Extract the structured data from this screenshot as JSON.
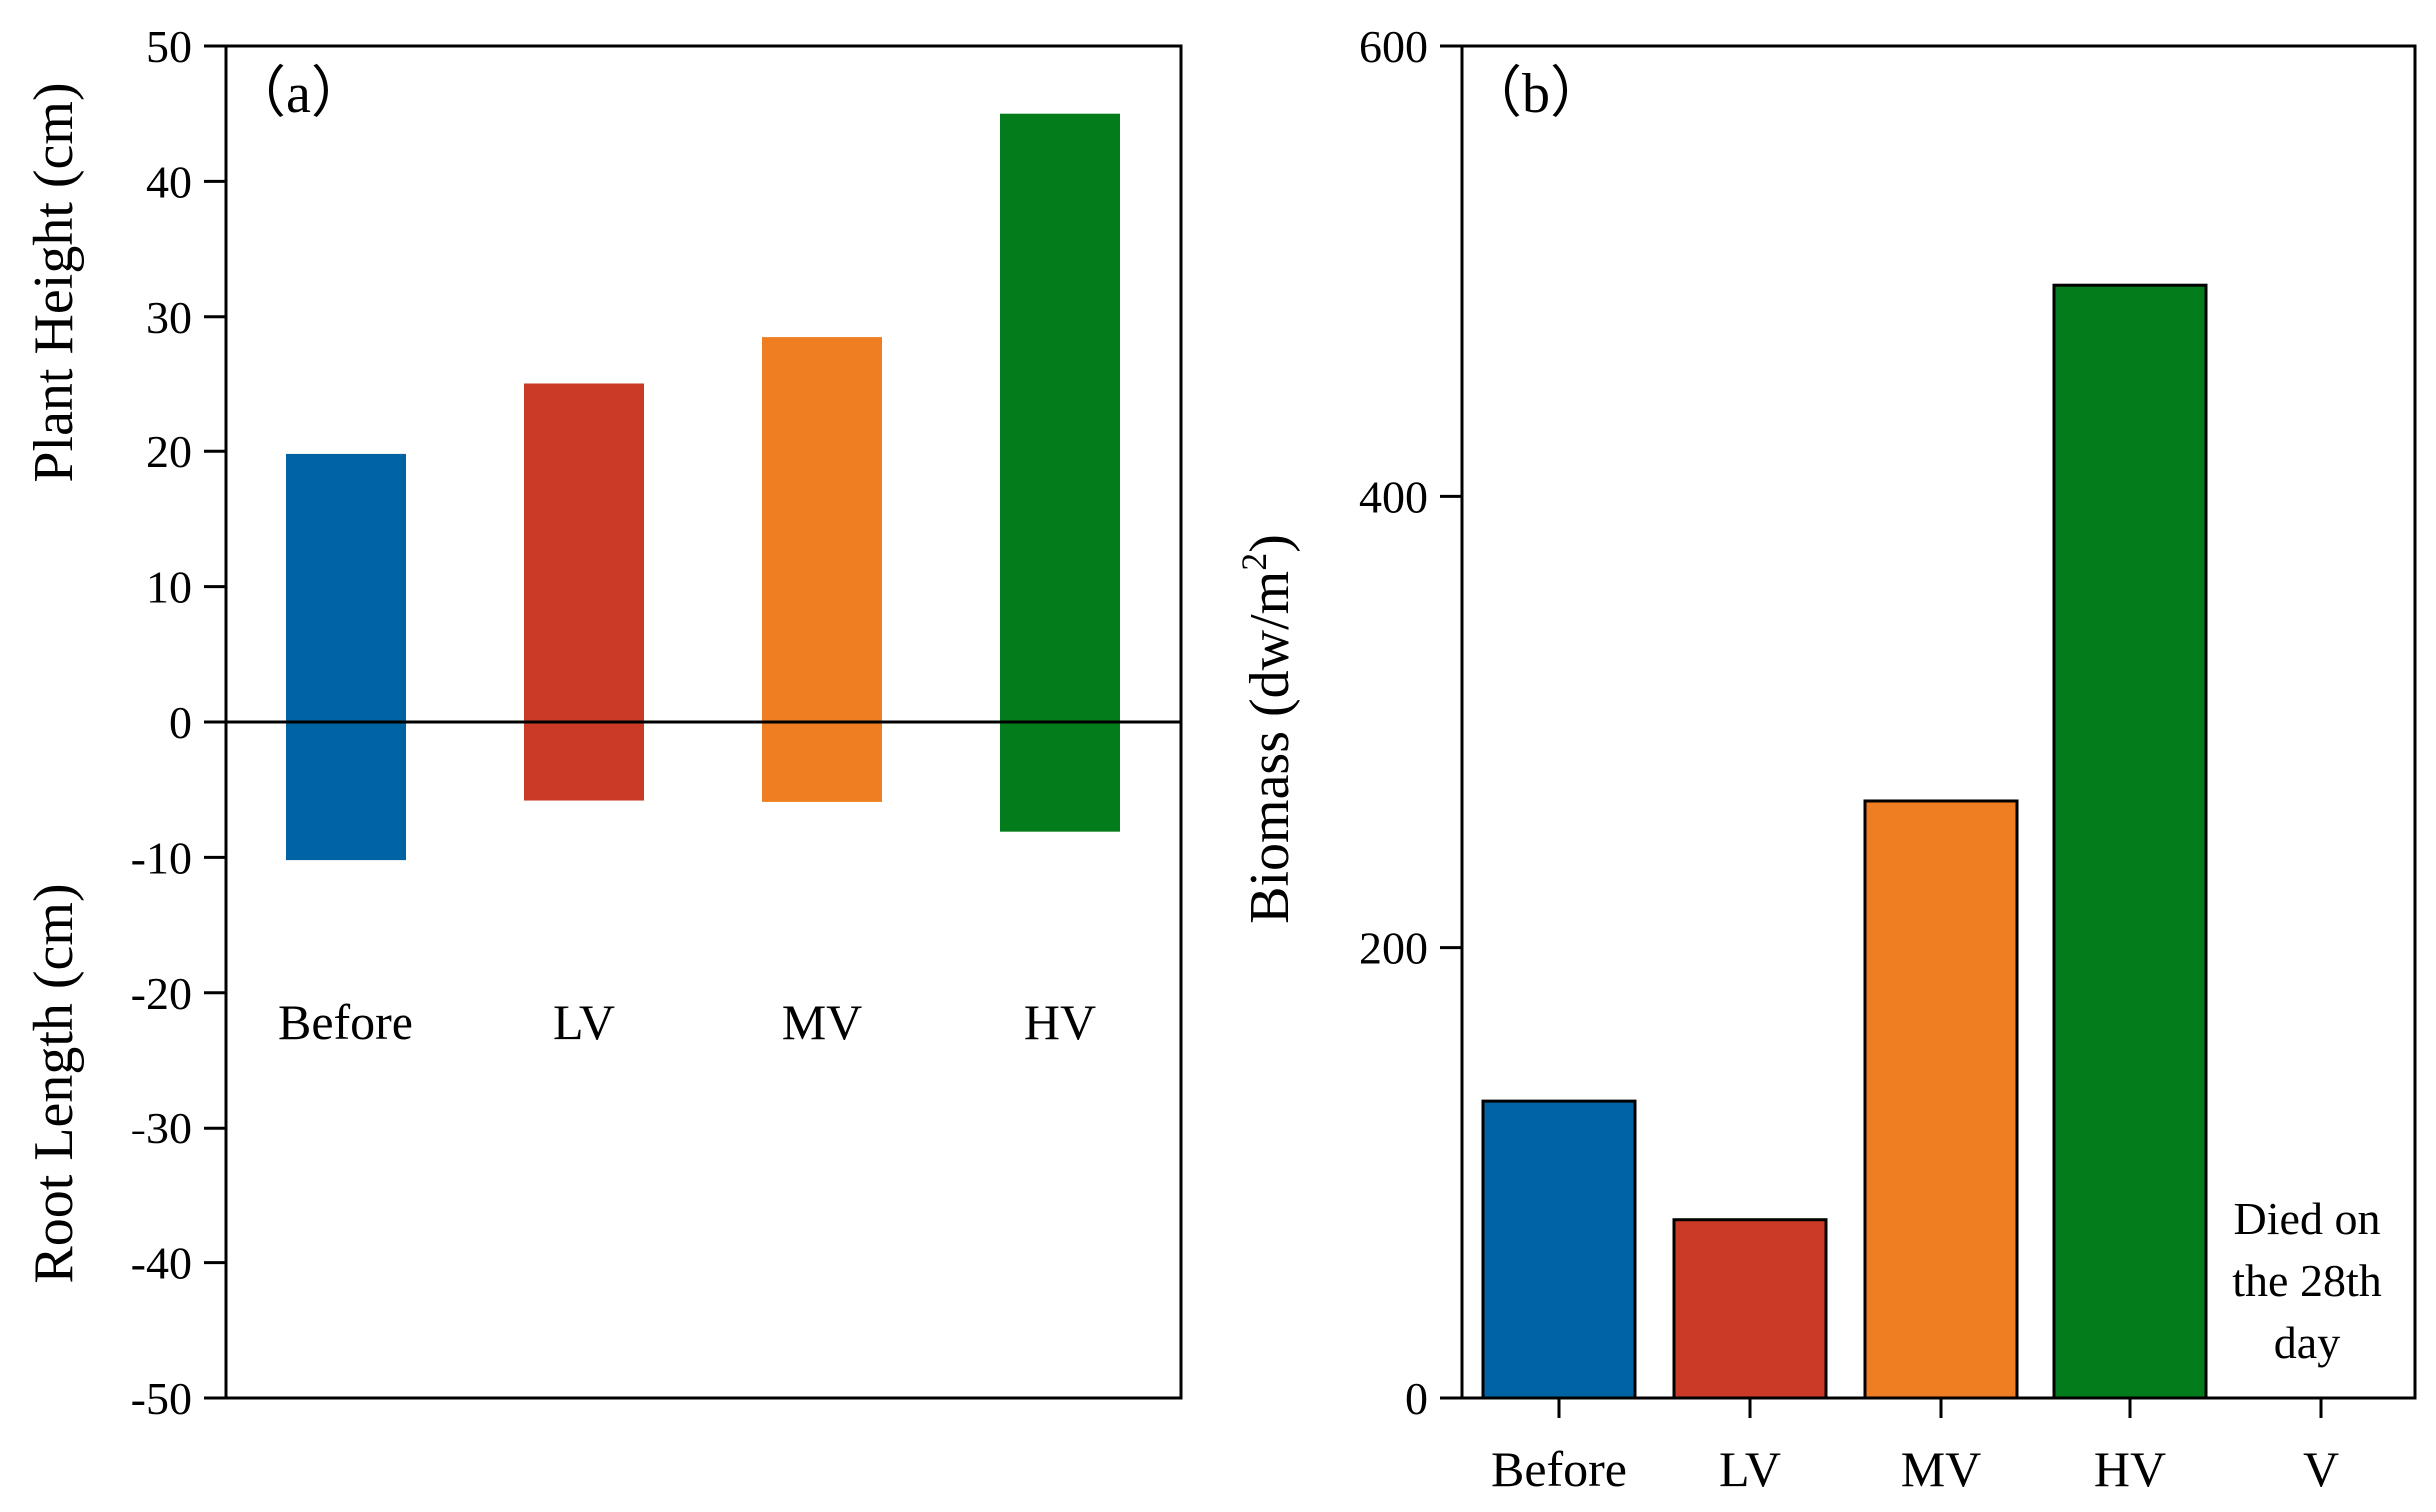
{
  "colors": {
    "before": "#0063a3",
    "lv": "#cb3a27",
    "mv": "#ef7d22",
    "hv": "#037c1b"
  },
  "chart_data": [
    {
      "type": "bar",
      "panel_label": "（a）",
      "ylabel_top": "Plant Height (cm)",
      "ylabel_bottom": "Root Length (cm)",
      "ylim": [
        -50,
        50
      ],
      "yticks": [
        "50",
        "40",
        "30",
        "20",
        "10",
        "0",
        "-10",
        "-20",
        "-30",
        "-40",
        "-50"
      ],
      "categories": [
        "Before",
        "LV",
        "MV",
        "HV"
      ],
      "series": [
        {
          "values": [
            19.8,
            25,
            28.5,
            45
          ]
        },
        {
          "values": [
            -10.2,
            -5.8,
            -5.9,
            -8.1
          ]
        }
      ],
      "grid": false
    },
    {
      "type": "bar",
      "panel_label": "（b）",
      "ylabel": "Biomass (dw/m",
      "ylabel_sup": "2",
      "ylabel_close": ")",
      "ylim": [
        0,
        600
      ],
      "yticks": [
        "600",
        "400",
        "200",
        "0"
      ],
      "categories": [
        "Before",
        "LV",
        "MV",
        "HV",
        "V"
      ],
      "values": [
        132,
        79,
        265,
        494,
        0
      ],
      "annotation": [
        "Died on",
        "the 28th",
        "day"
      ],
      "grid": false
    }
  ]
}
